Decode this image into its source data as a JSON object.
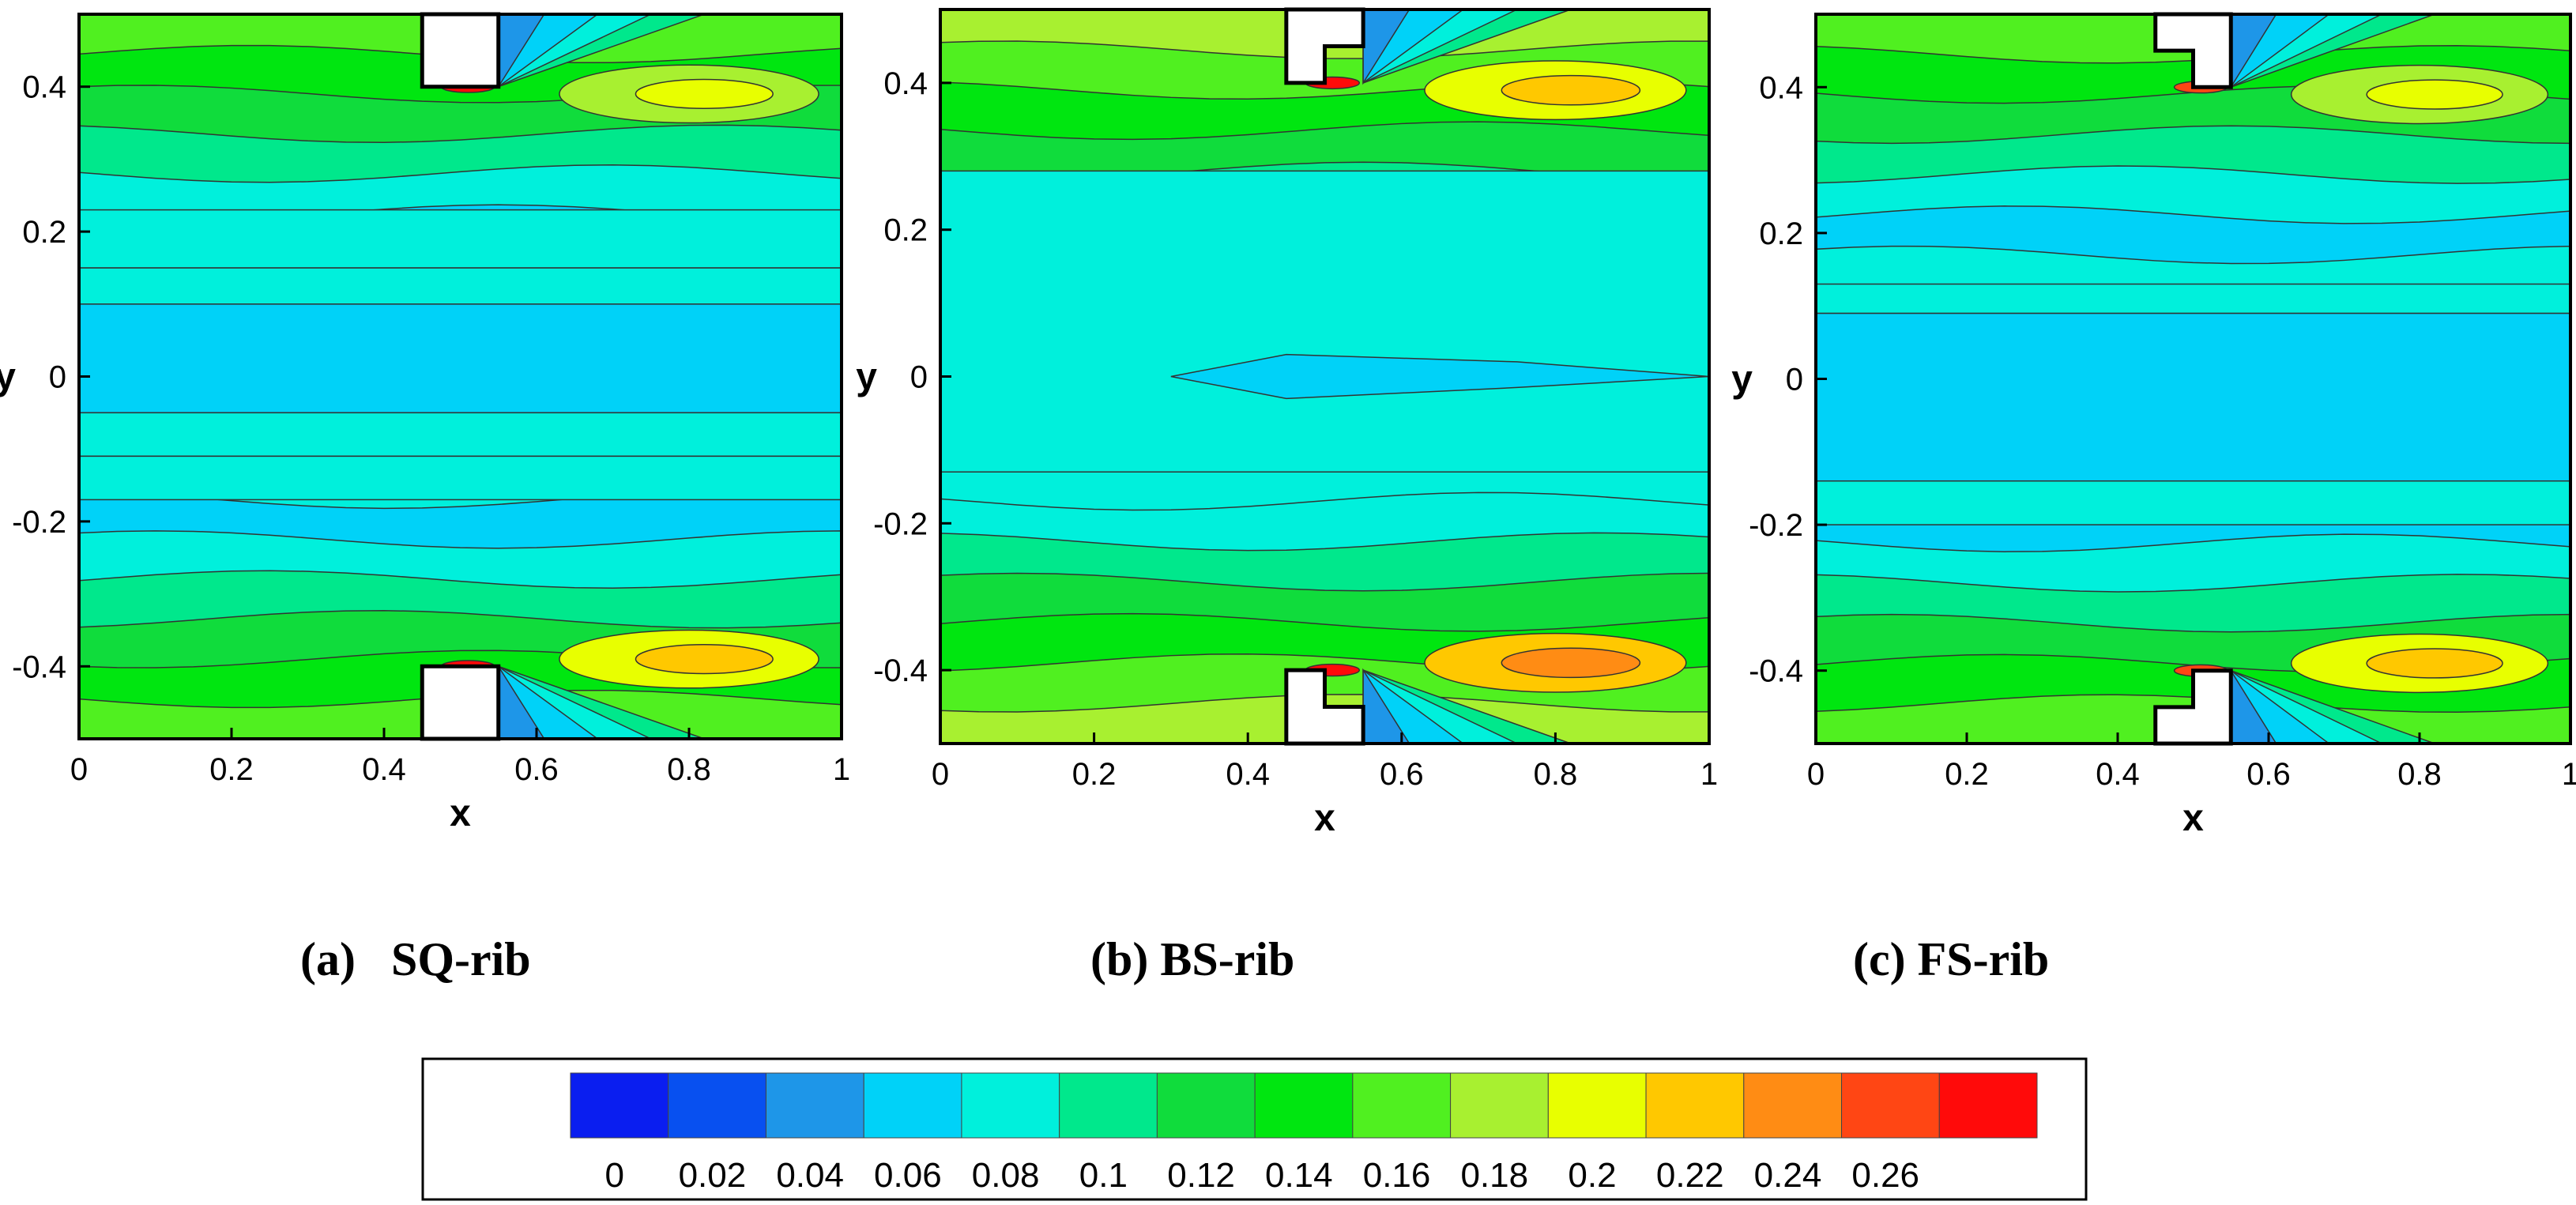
{
  "chart_data": [
    {
      "type": "heatmap",
      "caption_label": "(a)",
      "caption_name": "SQ-rib",
      "xlabel": "x",
      "ylabel": "y",
      "xlim": [
        0,
        1
      ],
      "ylim": [
        -0.5,
        0.5
      ],
      "xticks": [
        "0",
        "0.2",
        "0.4",
        "0.6",
        "0.8",
        "1"
      ],
      "yticks": [
        "-0.4",
        "-0.2",
        "0",
        "0.2",
        "0.4"
      ],
      "rib_shape": "square",
      "rib_x_range": [
        0.45,
        0.55
      ],
      "rib_height": 0.1,
      "wall_band_levels": [
        0.14,
        0.12,
        0.1,
        0.08,
        0.06,
        0.04
      ],
      "near_wall_peak": 0.26,
      "downstream_peak": 0.2
    },
    {
      "type": "heatmap",
      "caption_label": "(b)",
      "caption_name": "BS-rib",
      "xlabel": "x",
      "ylabel": "y",
      "xlim": [
        0,
        1
      ],
      "ylim": [
        -0.5,
        0.5
      ],
      "xticks": [
        "0",
        "0.2",
        "0.4",
        "0.6",
        "0.8",
        "1"
      ],
      "yticks": [
        "-0.4",
        "-0.2",
        "0",
        "0.2",
        "0.4"
      ],
      "rib_shape": "backward-step",
      "rib_x_range": [
        0.45,
        0.55
      ],
      "rib_height": 0.1,
      "wall_band_levels": [
        0.16,
        0.14,
        0.12,
        0.1,
        0.08,
        0.06
      ],
      "near_wall_peak": 0.26,
      "downstream_peak": 0.22
    },
    {
      "type": "heatmap",
      "caption_label": "(c)",
      "caption_name": "FS-rib",
      "xlabel": "x",
      "ylabel": "y",
      "xlim": [
        0,
        1
      ],
      "ylim": [
        -0.5,
        0.5
      ],
      "xticks": [
        "0",
        "0.2",
        "0.4",
        "0.6",
        "0.8",
        "1"
      ],
      "yticks": [
        "-0.4",
        "-0.2",
        "0",
        "0.2",
        "0.4"
      ],
      "rib_shape": "forward-step",
      "rib_x_range": [
        0.45,
        0.55
      ],
      "rib_height": 0.1,
      "wall_band_levels": [
        0.14,
        0.12,
        0.1,
        0.08,
        0.06,
        0.04
      ],
      "near_wall_peak": 0.24,
      "downstream_peak": 0.2
    }
  ],
  "colorbar": {
    "levels": [
      "0",
      "0.02",
      "0.04",
      "0.06",
      "0.08",
      "0.1",
      "0.12",
      "0.14",
      "0.16",
      "0.18",
      "0.2",
      "0.22",
      "0.24",
      "0.26"
    ],
    "colors": [
      "#0a1ef0",
      "#0850f0",
      "#1e96e8",
      "#00d2f8",
      "#00f0dc",
      "#00e88c",
      "#10dc3c",
      "#00e610",
      "#50f020",
      "#a8f030",
      "#e8ff00",
      "#ffc800",
      "#ff8c14",
      "#ff4614",
      "#ff0a0a"
    ]
  }
}
